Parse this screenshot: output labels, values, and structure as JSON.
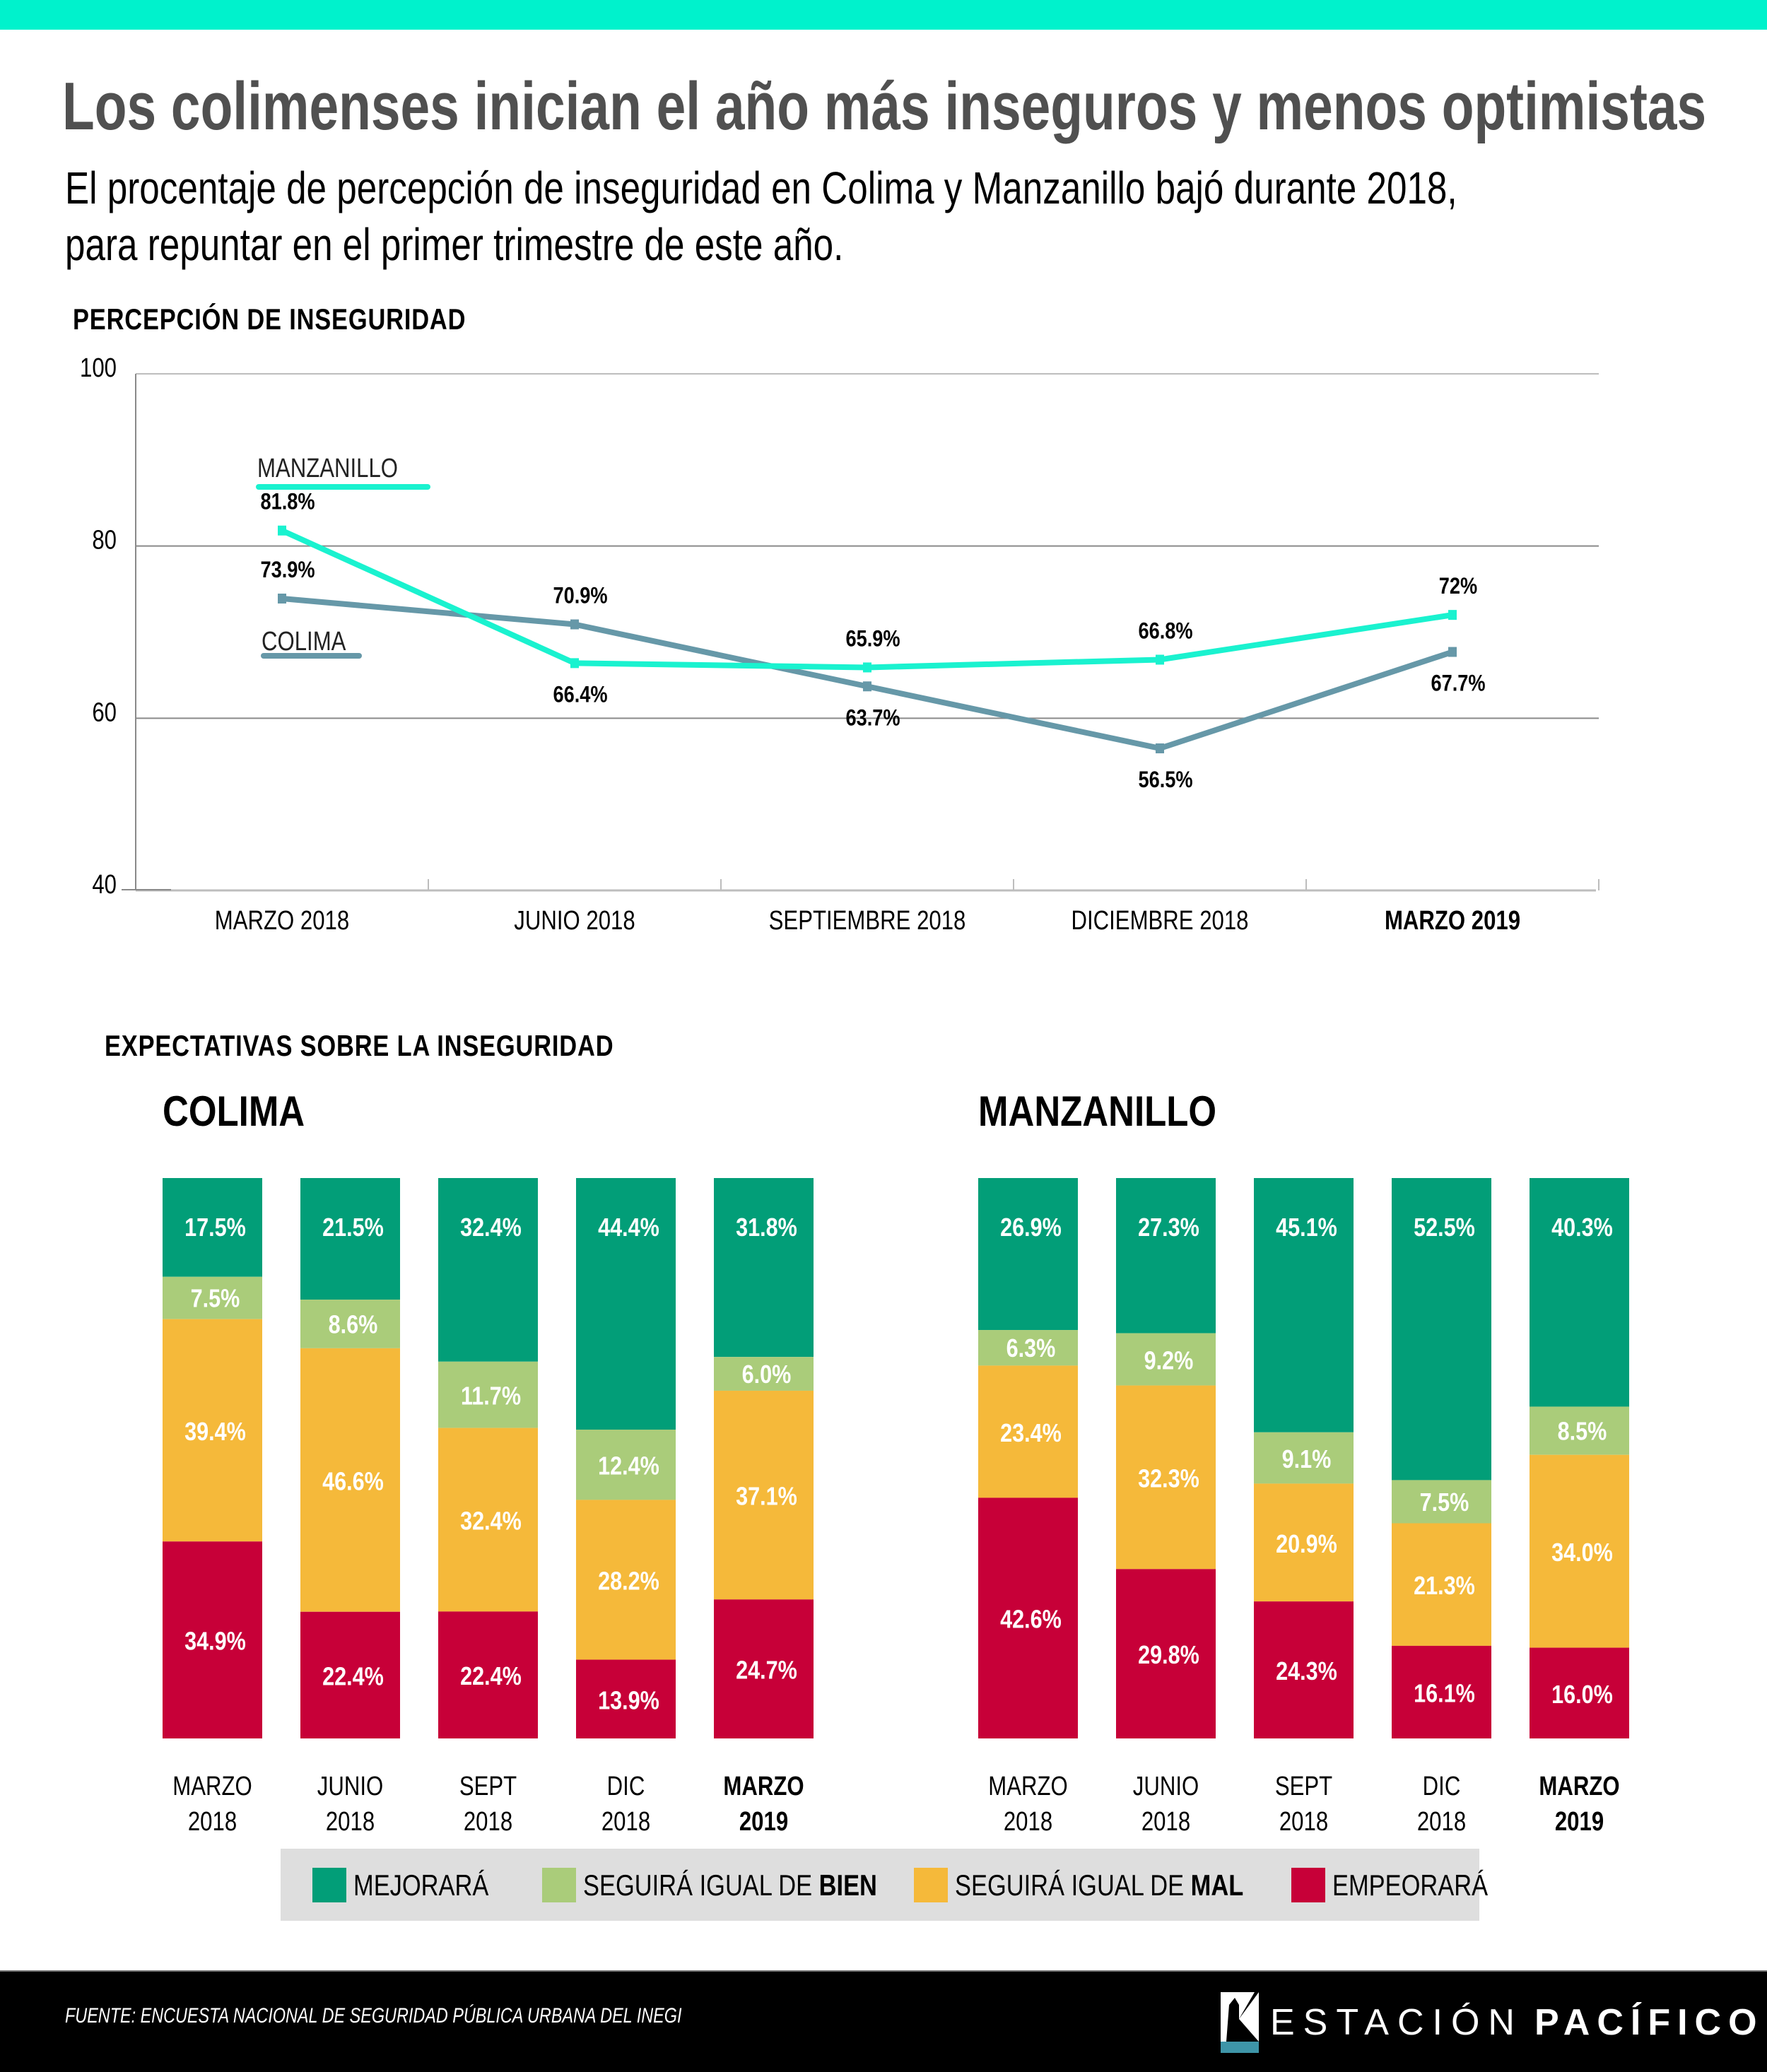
{
  "header": {
    "title": "Los colimenses inician el año más inseguros y menos optimistas",
    "subtitle_line1": "El procentaje de percepción de inseguridad en Colima y Manzanillo bajó durante 2018,",
    "subtitle_line2": "para repuntar en el primer trimestre de este año."
  },
  "colors": {
    "top_bar": "#00F2CC",
    "manzanillo_line": "#1AF2CF",
    "colima_line": "#6698A8",
    "mejorara": "#029E78",
    "igual_bien": "#AACC7A",
    "igual_mal": "#F5B93A",
    "empeorara": "#C70038",
    "legend_bg": "#DEDEDE",
    "title_text": "#505050"
  },
  "chart_data": [
    {
      "type": "line",
      "title": "PERCEPCIÓN DE INSEGURIDAD",
      "xlabel": "",
      "ylabel": "",
      "ylim": [
        40,
        100
      ],
      "yticks": [
        100,
        80,
        60,
        40
      ],
      "grid": true,
      "categories": [
        "MARZO 2018",
        "JUNIO 2018",
        "SEPTIEMBRE 2018",
        "DICIEMBRE 2018",
        "MARZO 2019"
      ],
      "highlight_category": "MARZO 2019",
      "series": [
        {
          "name": "MANZANILLO",
          "values": [
            81.8,
            66.4,
            65.9,
            66.8,
            72.0
          ],
          "labels": [
            "81.8%",
            "66.4%",
            "65.9%",
            "66.8%",
            "72%"
          ],
          "label_position": [
            "above",
            "below",
            "above",
            "above",
            "above"
          ]
        },
        {
          "name": "COLIMA",
          "values": [
            73.9,
            70.9,
            63.7,
            56.5,
            67.7
          ],
          "labels": [
            "73.9%",
            "70.9%",
            "63.7%",
            "56.5%",
            "67.7%"
          ],
          "label_position": [
            "above",
            "above",
            "below",
            "below",
            "below"
          ]
        }
      ],
      "legend": "inline-left"
    },
    {
      "type": "bar",
      "stacked": true,
      "title": "EXPECTATIVAS SOBRE LA INSEGURIDAD",
      "panels": [
        {
          "name": "COLIMA",
          "categories": [
            [
              "MARZO",
              "2018"
            ],
            [
              "JUNIO",
              "2018"
            ],
            [
              "SEPT",
              "2018"
            ],
            [
              "DIC",
              "2018"
            ],
            [
              "MARZO",
              "2019"
            ]
          ],
          "highlight_index": 4,
          "series": [
            {
              "name": "MEJORARÁ",
              "values": [
                17.5,
                21.5,
                32.4,
                44.4,
                31.8
              ]
            },
            {
              "name": "SEGUIRÁ IGUAL DE BIEN",
              "values": [
                7.5,
                8.6,
                11.7,
                12.4,
                6.0
              ]
            },
            {
              "name": "SEGUIRÁ IGUAL DE MAL",
              "values": [
                39.4,
                46.6,
                32.4,
                28.2,
                37.1
              ]
            },
            {
              "name": "EMPEORARÁ",
              "values": [
                34.9,
                22.4,
                22.4,
                13.9,
                24.7
              ]
            }
          ]
        },
        {
          "name": "MANZANILLO",
          "categories": [
            [
              "MARZO",
              "2018"
            ],
            [
              "JUNIO",
              "2018"
            ],
            [
              "SEPT",
              "2018"
            ],
            [
              "DIC",
              "2018"
            ],
            [
              "MARZO",
              "2019"
            ]
          ],
          "highlight_index": 4,
          "series": [
            {
              "name": "MEJORARÁ",
              "values": [
                26.9,
                27.3,
                45.1,
                52.5,
                40.3
              ]
            },
            {
              "name": "SEGUIRÁ IGUAL DE BIEN",
              "values": [
                6.3,
                9.2,
                9.1,
                7.5,
                8.5
              ]
            },
            {
              "name": "SEGUIRÁ IGUAL DE MAL",
              "values": [
                23.4,
                32.3,
                20.9,
                21.3,
                34.0
              ]
            },
            {
              "name": "EMPEORARÁ",
              "values": [
                42.6,
                29.8,
                24.3,
                16.1,
                16.0
              ]
            }
          ]
        }
      ],
      "legend": "bottom-center"
    }
  ],
  "legend": {
    "items": [
      {
        "prefix": "MEJORARÁ",
        "bold": ""
      },
      {
        "prefix": "SEGUIRÁ IGUAL DE ",
        "bold": "BIEN"
      },
      {
        "prefix": "SEGUIRÁ IGUAL DE ",
        "bold": "MAL"
      },
      {
        "prefix": "EMPEORARÁ",
        "bold": ""
      }
    ]
  },
  "footer": {
    "source": "FUENTE: ENCUESTA NACIONAL DE SEGURIDAD PÚBLICA URBANA DEL INEGI",
    "brand_light": "ESTACIÓN",
    "brand_bold": "PACÍFICO"
  }
}
